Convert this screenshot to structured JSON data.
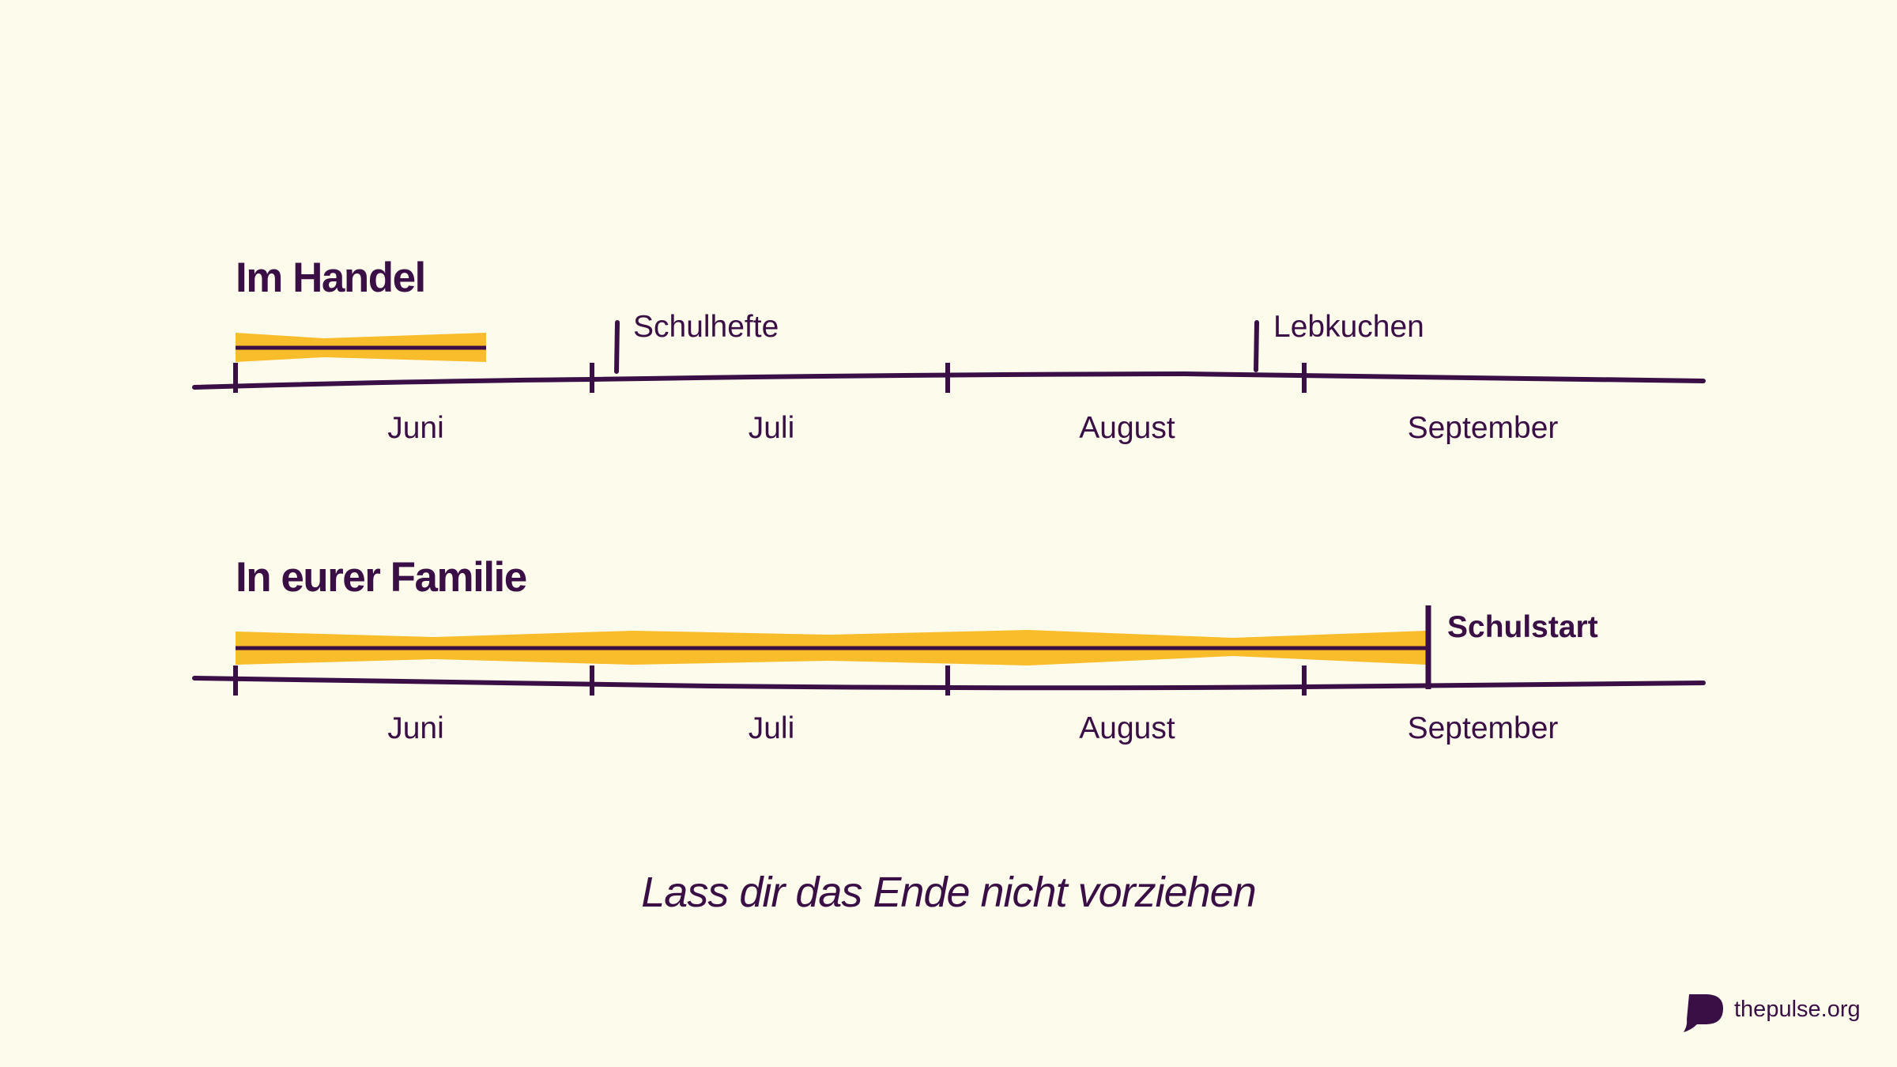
{
  "months": [
    "Juni",
    "Juli",
    "August",
    "September"
  ],
  "timelines": [
    {
      "title": "Im Handel",
      "markers": [
        {
          "label": "Schulhefte",
          "bold": false
        },
        {
          "label": "Lebkuchen",
          "bold": false
        }
      ]
    },
    {
      "title": "In eurer Familie",
      "markers": [
        {
          "label": "Schulstart",
          "bold": true
        }
      ]
    }
  ],
  "caption": "Lass dir das Ende nicht vorziehen",
  "brand": {
    "logo_icon": "speech-bubble-p-icon",
    "text": "thepulse.org"
  },
  "colors": {
    "background": "#fdfbec",
    "ink": "#3a0f45",
    "highlight": "#f9bc2b"
  }
}
